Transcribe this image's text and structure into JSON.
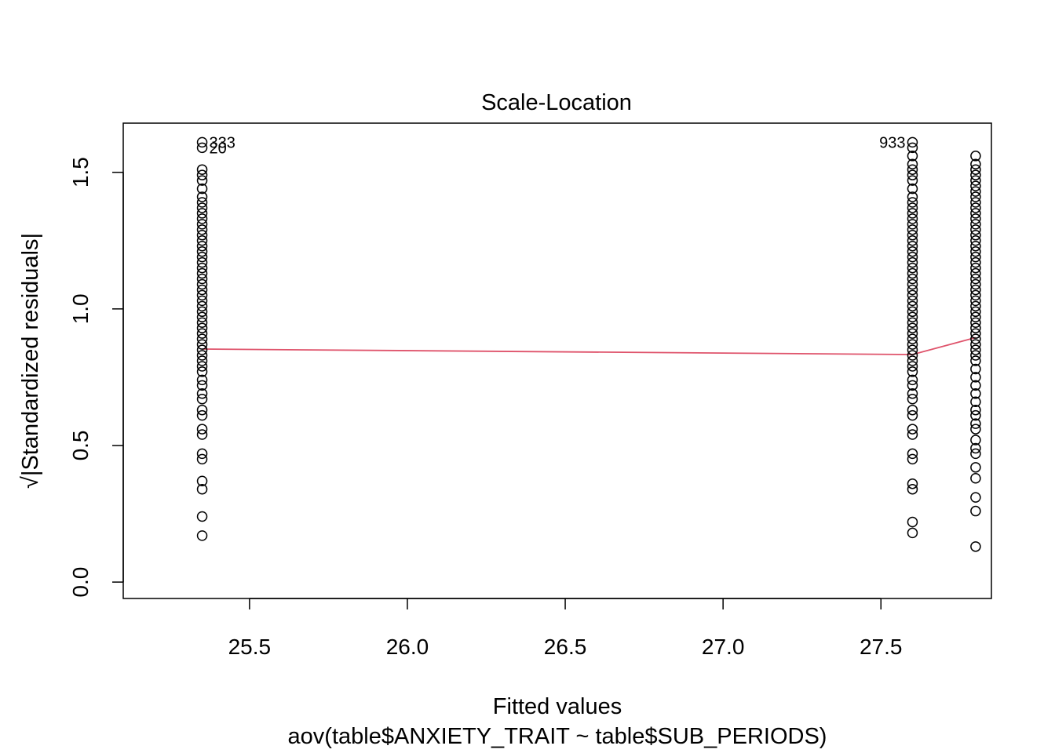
{
  "chart_data": {
    "type": "scatter",
    "title": "Scale-Location",
    "xlabel": "Fitted values",
    "subtitle": "aov(table$ANXIETY_TRAIT ~ table$SUB_PERIODS)",
    "ylabel": "√|Standardized residuals|",
    "xlim": [
      25.1,
      27.85
    ],
    "ylim": [
      -0.06,
      1.68
    ],
    "x_ticks": [
      25.5,
      26.0,
      26.5,
      27.0,
      27.5
    ],
    "x_tick_labels": [
      "25.5",
      "26.0",
      "26.5",
      "27.0",
      "27.5"
    ],
    "y_ticks": [
      0.0,
      0.5,
      1.0,
      1.5
    ],
    "y_tick_labels": [
      "0.0",
      "0.5",
      "1.0",
      "1.5"
    ],
    "point_color": "#000000",
    "smooth_color": "#DF536B",
    "groups": [
      {
        "x": 25.35,
        "y": [
          0.17,
          0.24,
          0.34,
          0.37,
          0.45,
          0.47,
          0.54,
          0.56,
          0.61,
          0.63,
          0.67,
          0.69,
          0.72,
          0.74,
          0.77,
          0.79,
          0.81,
          0.83,
          0.85,
          0.87,
          0.89,
          0.91,
          0.93,
          0.95,
          0.97,
          0.99,
          1.01,
          1.03,
          1.05,
          1.07,
          1.09,
          1.11,
          1.13,
          1.15,
          1.17,
          1.19,
          1.21,
          1.23,
          1.25,
          1.27,
          1.29,
          1.31,
          1.33,
          1.35,
          1.37,
          1.39,
          1.41,
          1.44,
          1.47,
          1.49,
          1.51,
          1.59,
          1.61
        ]
      },
      {
        "x": 27.6,
        "y": [
          0.18,
          0.22,
          0.34,
          0.36,
          0.45,
          0.47,
          0.54,
          0.56,
          0.61,
          0.63,
          0.67,
          0.69,
          0.72,
          0.74,
          0.77,
          0.79,
          0.81,
          0.83,
          0.85,
          0.87,
          0.89,
          0.91,
          0.93,
          0.95,
          0.97,
          0.99,
          1.01,
          1.03,
          1.05,
          1.07,
          1.09,
          1.11,
          1.13,
          1.15,
          1.17,
          1.19,
          1.21,
          1.23,
          1.25,
          1.27,
          1.29,
          1.31,
          1.33,
          1.35,
          1.37,
          1.39,
          1.41,
          1.44,
          1.47,
          1.49,
          1.51,
          1.53,
          1.56,
          1.59,
          1.61
        ]
      },
      {
        "x": 27.8,
        "y": [
          0.13,
          0.26,
          0.31,
          0.38,
          0.42,
          0.47,
          0.49,
          0.52,
          0.56,
          0.58,
          0.61,
          0.63,
          0.66,
          0.69,
          0.72,
          0.75,
          0.78,
          0.81,
          0.83,
          0.85,
          0.87,
          0.89,
          0.91,
          0.93,
          0.95,
          0.97,
          0.99,
          1.01,
          1.03,
          1.05,
          1.07,
          1.09,
          1.11,
          1.13,
          1.15,
          1.17,
          1.19,
          1.21,
          1.23,
          1.25,
          1.27,
          1.29,
          1.31,
          1.33,
          1.35,
          1.37,
          1.39,
          1.41,
          1.43,
          1.45,
          1.47,
          1.49,
          1.51,
          1.53,
          1.56
        ]
      }
    ],
    "smooth_line": [
      [
        25.35,
        0.853
      ],
      [
        27.6,
        0.833
      ],
      [
        27.8,
        0.895
      ]
    ],
    "point_labels": [
      {
        "text": "333",
        "x": 25.35,
        "y": 1.61,
        "side": "right"
      },
      {
        "text": "20",
        "x": 25.35,
        "y": 1.59,
        "side": "right"
      },
      {
        "text": "933",
        "x": 27.6,
        "y": 1.61,
        "side": "left"
      }
    ]
  }
}
